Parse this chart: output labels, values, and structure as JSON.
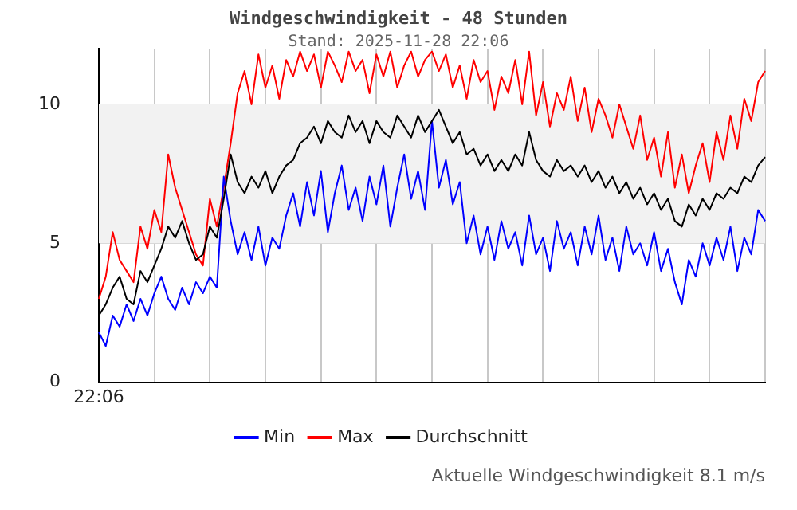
{
  "chart_data": {
    "type": "line",
    "title": "Windgeschwindigkeit - 48 Stunden",
    "subtitle": "Stand: 2025-11-28 22:06",
    "categories": [
      "22:06",
      null,
      null,
      null,
      null,
      null,
      null,
      null,
      null,
      null,
      null,
      null,
      null,
      null,
      null,
      null,
      null,
      null,
      null,
      null,
      null,
      null,
      null,
      null,
      null,
      null,
      null,
      null,
      null,
      null,
      null,
      null,
      null,
      null,
      null,
      null,
      null,
      null,
      null,
      null,
      null,
      null,
      null,
      null,
      null,
      null,
      null,
      null,
      null,
      null,
      null,
      null,
      null,
      null,
      null,
      null,
      null,
      null,
      null,
      null,
      null,
      null,
      null,
      null,
      null,
      null,
      null,
      null,
      null,
      null,
      null,
      null,
      null,
      null,
      null,
      null,
      null,
      null,
      null,
      null,
      null,
      null,
      null,
      null,
      null,
      null,
      null,
      null,
      null,
      null,
      null,
      null,
      null,
      null,
      null,
      null,
      null
    ],
    "ylim": [
      0,
      12
    ],
    "yticks": [
      0,
      5,
      10
    ],
    "grid": true,
    "legend": "bottom",
    "marker": "none",
    "line_style": "solid",
    "bands": [
      {
        "axis": "y",
        "from": 5,
        "to": 10,
        "color": "#f2f2f2"
      }
    ],
    "annotations": [
      "Aktuelle Windgeschwindigkeit 8.1 m/s"
    ],
    "series": [
      {
        "name": "Min",
        "color": "#0000ff",
        "values": [
          1.8,
          1.3,
          2.4,
          2.0,
          2.8,
          2.2,
          3.0,
          2.4,
          3.2,
          3.8,
          3.0,
          2.6,
          3.4,
          2.8,
          3.6,
          3.2,
          3.8,
          3.4,
          7.4,
          5.8,
          4.6,
          5.4,
          4.4,
          5.6,
          4.2,
          5.2,
          4.8,
          6.0,
          6.8,
          5.6,
          7.2,
          6.0,
          7.6,
          5.4,
          6.8,
          7.8,
          6.2,
          7.0,
          5.8,
          7.4,
          6.4,
          7.8,
          5.6,
          7.0,
          8.2,
          6.6,
          7.6,
          6.2,
          9.4,
          7.0,
          8.0,
          6.4,
          7.2,
          5.0,
          6.0,
          4.6,
          5.6,
          4.4,
          5.8,
          4.8,
          5.4,
          4.2,
          6.0,
          4.6,
          5.2,
          4.0,
          5.8,
          4.8,
          5.4,
          4.2,
          5.6,
          4.6,
          6.0,
          4.4,
          5.2,
          4.0,
          5.6,
          4.6,
          5.0,
          4.2,
          5.4,
          4.0,
          4.8,
          3.6,
          2.8,
          4.4,
          3.8,
          5.0,
          4.2,
          5.2,
          4.4,
          5.6,
          4.0,
          5.2,
          4.6,
          6.2,
          5.8
        ]
      },
      {
        "name": "Max",
        "color": "#ff0000",
        "values": [
          3.0,
          3.8,
          5.4,
          4.4,
          4.0,
          3.6,
          5.6,
          4.8,
          6.2,
          5.4,
          8.2,
          7.0,
          6.2,
          5.4,
          4.6,
          4.2,
          6.6,
          5.6,
          7.0,
          8.6,
          10.4,
          11.2,
          10.0,
          11.8,
          10.6,
          11.4,
          10.2,
          11.6,
          11.0,
          11.9,
          11.2,
          11.8,
          10.6,
          11.9,
          11.4,
          10.8,
          11.9,
          11.2,
          11.6,
          10.4,
          11.8,
          11.0,
          11.9,
          10.6,
          11.4,
          11.9,
          11.0,
          11.6,
          11.9,
          11.2,
          11.8,
          10.6,
          11.4,
          10.2,
          11.6,
          10.8,
          11.2,
          9.8,
          11.0,
          10.4,
          11.6,
          10.0,
          11.9,
          9.6,
          10.8,
          9.2,
          10.4,
          9.8,
          11.0,
          9.4,
          10.6,
          9.0,
          10.2,
          9.6,
          8.8,
          10.0,
          9.2,
          8.4,
          9.6,
          8.0,
          8.8,
          7.4,
          9.0,
          7.0,
          8.2,
          6.8,
          7.8,
          8.6,
          7.2,
          9.0,
          8.0,
          9.6,
          8.4,
          10.2,
          9.4,
          10.8,
          11.2
        ]
      },
      {
        "name": "Durchschnitt",
        "color": "#000000",
        "values": [
          2.4,
          2.8,
          3.4,
          3.8,
          3.0,
          2.8,
          4.0,
          3.6,
          4.2,
          4.8,
          5.6,
          5.2,
          5.8,
          5.0,
          4.4,
          4.6,
          5.6,
          5.2,
          6.6,
          8.2,
          7.2,
          6.8,
          7.4,
          7.0,
          7.6,
          6.8,
          7.4,
          7.8,
          8.0,
          8.6,
          8.8,
          9.2,
          8.6,
          9.4,
          9.0,
          8.8,
          9.6,
          9.0,
          9.4,
          8.6,
          9.4,
          9.0,
          8.8,
          9.6,
          9.2,
          8.8,
          9.6,
          9.0,
          9.4,
          9.8,
          9.2,
          8.6,
          9.0,
          8.2,
          8.4,
          7.8,
          8.2,
          7.6,
          8.0,
          7.6,
          8.2,
          7.8,
          9.0,
          8.0,
          7.6,
          7.4,
          8.0,
          7.6,
          7.8,
          7.4,
          7.8,
          7.2,
          7.6,
          7.0,
          7.4,
          6.8,
          7.2,
          6.6,
          7.0,
          6.4,
          6.8,
          6.2,
          6.6,
          5.8,
          5.6,
          6.4,
          6.0,
          6.6,
          6.2,
          6.8,
          6.6,
          7.0,
          6.8,
          7.4,
          7.2,
          7.8,
          8.1
        ]
      }
    ]
  }
}
